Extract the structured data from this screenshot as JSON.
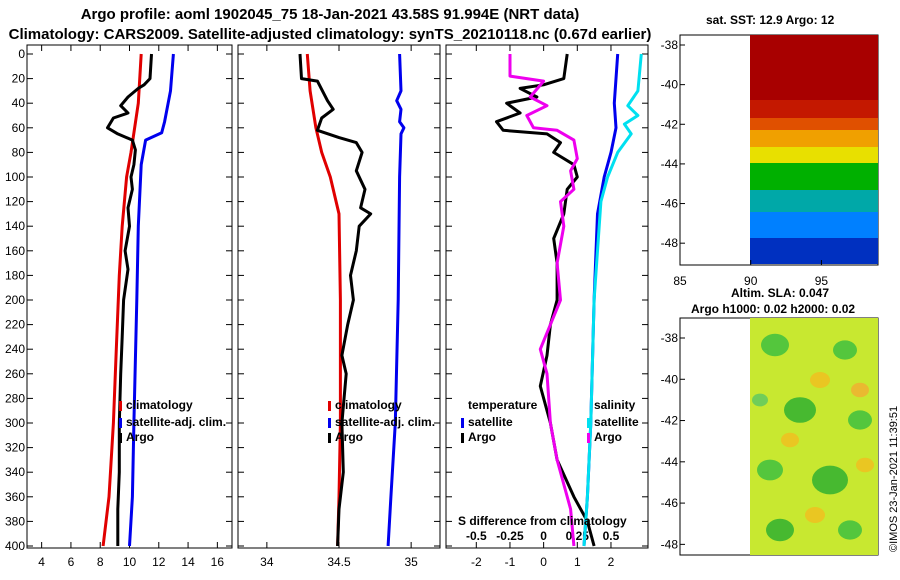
{
  "header": {
    "line1": "Argo profile: aoml 1902045_75  18-Jan-2021 43.58S 91.994E (NRT data)",
    "line2": "Climatology: CARS2009.  Satellite-adjusted climatology: synTS_20210118.nc (0.67d earlier)"
  },
  "colors": {
    "red": "#e00000",
    "blue": "#0000ee",
    "black": "#000000",
    "magenta": "#ee00ee",
    "cyan": "#00e0f0"
  },
  "chart_data": [
    {
      "type": "line",
      "name": "temperature-profile",
      "xlim": [
        3,
        17
      ],
      "ylim": [
        0,
        400
      ],
      "yticks": [
        "0",
        "20",
        "40",
        "60",
        "80",
        "100",
        "120",
        "140",
        "160",
        "180",
        "200",
        "220",
        "240",
        "260",
        "280",
        "300",
        "320",
        "340",
        "360",
        "380",
        "400"
      ],
      "xticks": [
        "4",
        "6",
        "8",
        "10",
        "12",
        "14",
        "16"
      ],
      "series": [
        {
          "name": "climatology",
          "color": "#e00000",
          "points": [
            [
              10.8,
              0
            ],
            [
              10.6,
              40
            ],
            [
              10.1,
              80
            ],
            [
              9.8,
              100
            ],
            [
              9.5,
              140
            ],
            [
              9.3,
              180
            ],
            [
              9.1,
              240
            ],
            [
              8.9,
              300
            ],
            [
              8.6,
              360
            ],
            [
              8.2,
              400
            ]
          ]
        },
        {
          "name": "satellite-adj. clim.",
          "color": "#0000ee",
          "points": [
            [
              13.0,
              0
            ],
            [
              12.8,
              30
            ],
            [
              12.4,
              55
            ],
            [
              12.2,
              64
            ],
            [
              11.1,
              70
            ],
            [
              10.8,
              90
            ],
            [
              10.6,
              140
            ],
            [
              10.5,
              200
            ],
            [
              10.3,
              300
            ],
            [
              10.2,
              360
            ],
            [
              10.0,
              400
            ]
          ]
        },
        {
          "name": "Argo",
          "color": "#000000",
          "points": [
            [
              11.5,
              0
            ],
            [
              11.4,
              20
            ],
            [
              11.0,
              25
            ],
            [
              10.6,
              28
            ],
            [
              9.9,
              35
            ],
            [
              9.4,
              42
            ],
            [
              9.9,
              48
            ],
            [
              8.9,
              52
            ],
            [
              8.5,
              60
            ],
            [
              9.2,
              65
            ],
            [
              10.2,
              70
            ],
            [
              10.4,
              78
            ],
            [
              10.3,
              90
            ],
            [
              10.1,
              100
            ],
            [
              10.2,
              110
            ],
            [
              9.9,
              125
            ],
            [
              10.0,
              140
            ],
            [
              9.7,
              160
            ],
            [
              9.9,
              175
            ],
            [
              9.6,
              200
            ],
            [
              9.5,
              230
            ],
            [
              9.4,
              260
            ],
            [
              9.3,
              300
            ],
            [
              9.3,
              340
            ],
            [
              9.2,
              370
            ],
            [
              9.2,
              400
            ]
          ]
        }
      ],
      "legend": {
        "placement": "lower-right",
        "entries": [
          "climatology",
          "satellite-adj. clim.",
          "Argo"
        ]
      }
    },
    {
      "type": "line",
      "name": "salinity-profile",
      "xlim": [
        33.8,
        35.2
      ],
      "ylim": [
        0,
        400
      ],
      "xticks": [
        "34",
        "34.5",
        "35"
      ],
      "series": [
        {
          "name": "climatology",
          "color": "#e00000",
          "points": [
            [
              34.28,
              0
            ],
            [
              34.3,
              30
            ],
            [
              34.34,
              60
            ],
            [
              34.38,
              80
            ],
            [
              34.44,
              100
            ],
            [
              34.5,
              130
            ],
            [
              34.51,
              200
            ],
            [
              34.51,
              300
            ],
            [
              34.5,
              360
            ],
            [
              34.49,
              400
            ]
          ]
        },
        {
          "name": "satellite-adj. clim.",
          "color": "#0000ee",
          "points": [
            [
              34.92,
              0
            ],
            [
              34.93,
              30
            ],
            [
              34.9,
              38
            ],
            [
              34.93,
              45
            ],
            [
              34.92,
              55
            ],
            [
              34.95,
              60
            ],
            [
              34.93,
              65
            ],
            [
              34.92,
              100
            ],
            [
              34.91,
              200
            ],
            [
              34.89,
              300
            ],
            [
              34.86,
              360
            ],
            [
              34.84,
              400
            ]
          ]
        },
        {
          "name": "Argo",
          "color": "#000000",
          "points": [
            [
              34.23,
              0
            ],
            [
              34.24,
              20
            ],
            [
              34.35,
              22
            ],
            [
              34.42,
              38
            ],
            [
              34.46,
              45
            ],
            [
              34.38,
              52
            ],
            [
              34.35,
              62
            ],
            [
              34.5,
              68
            ],
            [
              34.62,
              72
            ],
            [
              34.66,
              80
            ],
            [
              34.62,
              95
            ],
            [
              34.68,
              110
            ],
            [
              34.65,
              125
            ],
            [
              34.72,
              130
            ],
            [
              34.64,
              140
            ],
            [
              34.62,
              160
            ],
            [
              34.58,
              180
            ],
            [
              34.6,
              200
            ],
            [
              34.56,
              220
            ],
            [
              34.52,
              245
            ],
            [
              34.55,
              260
            ],
            [
              34.52,
              300
            ],
            [
              34.53,
              340
            ],
            [
              34.5,
              370
            ],
            [
              34.49,
              400
            ]
          ]
        }
      ],
      "legend": {
        "placement": "lower-right",
        "entries": [
          "climatology",
          "satellite-adj. clim.",
          "Argo"
        ]
      }
    },
    {
      "type": "line",
      "name": "difference-profile",
      "xlim": [
        -2.9,
        3.1
      ],
      "ylim": [
        0,
        400
      ],
      "xticks": [
        "-2",
        "-1",
        "0",
        "1",
        "2"
      ],
      "sub_xticks": [
        "-0.5",
        "-0.25",
        "0",
        "0.25",
        "0.5"
      ],
      "sub_xlabel": "S difference from climatology",
      "series": [
        {
          "name": "temperature satellite",
          "color": "#0000ee",
          "points": [
            [
              2.2,
              0
            ],
            [
              2.1,
              40
            ],
            [
              2.15,
              60
            ],
            [
              2.0,
              80
            ],
            [
              1.8,
              100
            ],
            [
              1.6,
              130
            ],
            [
              1.5,
              200
            ],
            [
              1.4,
              300
            ],
            [
              1.3,
              360
            ],
            [
              1.2,
              400
            ]
          ]
        },
        {
          "name": "temperature Argo",
          "color": "#000000",
          "points": [
            [
              0.7,
              0
            ],
            [
              0.6,
              20
            ],
            [
              0.0,
              25
            ],
            [
              -0.7,
              28
            ],
            [
              -0.2,
              35
            ],
            [
              -1.1,
              40
            ],
            [
              -0.7,
              48
            ],
            [
              -1.4,
              55
            ],
            [
              -1.2,
              62
            ],
            [
              0.1,
              65
            ],
            [
              0.5,
              72
            ],
            [
              0.3,
              80
            ],
            [
              0.9,
              90
            ],
            [
              1.0,
              100
            ],
            [
              0.7,
              110
            ],
            [
              0.6,
              130
            ],
            [
              0.3,
              150
            ],
            [
              0.4,
              170
            ],
            [
              0.4,
              200
            ],
            [
              0.2,
              220
            ],
            [
              0.1,
              245
            ],
            [
              -0.1,
              270
            ],
            [
              0.2,
              300
            ],
            [
              0.4,
              330
            ],
            [
              0.9,
              360
            ],
            [
              1.3,
              380
            ],
            [
              1.5,
              400
            ]
          ]
        },
        {
          "name": "salinity satellite",
          "color": "#00e0f0",
          "points": [
            [
              2.9,
              0
            ],
            [
              2.8,
              30
            ],
            [
              2.5,
              42
            ],
            [
              2.8,
              50
            ],
            [
              2.4,
              57
            ],
            [
              2.6,
              65
            ],
            [
              2.2,
              80
            ],
            [
              1.9,
              100
            ],
            [
              1.7,
              120
            ],
            [
              1.5,
              200
            ],
            [
              1.4,
              300
            ],
            [
              1.3,
              360
            ],
            [
              1.2,
              400
            ]
          ]
        },
        {
          "name": "salinity Argo",
          "color": "#ee00ee",
          "points": [
            [
              -1.0,
              0
            ],
            [
              -1.0,
              18
            ],
            [
              0.0,
              22
            ],
            [
              -0.4,
              35
            ],
            [
              0.1,
              42
            ],
            [
              -0.5,
              50
            ],
            [
              -0.3,
              60
            ],
            [
              0.4,
              62
            ],
            [
              0.9,
              70
            ],
            [
              1.0,
              85
            ],
            [
              0.8,
              95
            ],
            [
              0.9,
              110
            ],
            [
              0.5,
              120
            ],
            [
              0.6,
              140
            ],
            [
              0.4,
              170
            ],
            [
              0.5,
              200
            ],
            [
              0.2,
              220
            ],
            [
              -0.1,
              240
            ],
            [
              0.1,
              260
            ],
            [
              0.2,
              300
            ],
            [
              0.4,
              330
            ],
            [
              0.8,
              370
            ],
            [
              0.9,
              400
            ]
          ]
        }
      ],
      "legend": {
        "placement": "lower",
        "temp_head": "temperature",
        "sal_head": "salinity",
        "entries": [
          "satellite",
          "Argo"
        ]
      }
    }
  ],
  "map_sst": {
    "title": "sat. SST: 12.9  Argo: 12",
    "lat_ticks": [
      "-38",
      "-40",
      "-42",
      "-44",
      "-46",
      "-48"
    ],
    "lon_ticks": [
      "85",
      "90",
      "95"
    ],
    "bands": [
      "#a80000",
      "#c41800",
      "#e05000",
      "#f0a000",
      "#e8e000",
      "#00b000",
      "#00a8a8",
      "#0080ff",
      "#0030c0"
    ]
  },
  "map_sla": {
    "title_line1": "Altim. SLA: 0.047",
    "title_line2": "Argo h1000: 0.02 h2000: 0.02",
    "lat_ticks": [
      "-38",
      "-40",
      "-42",
      "-44",
      "-46",
      "-48"
    ]
  },
  "credit": "©IMOS 23-Jan-2021 11:39:51"
}
